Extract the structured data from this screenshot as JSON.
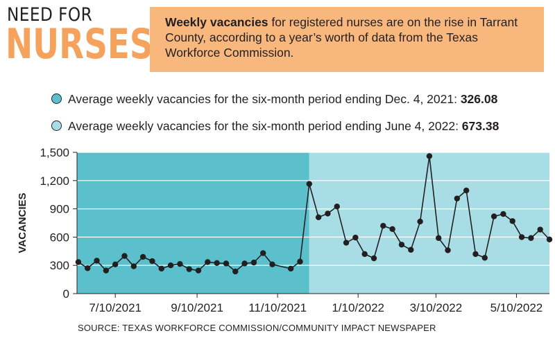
{
  "header": {
    "title_line1": "NEED FOR",
    "title_line2": "NURSES",
    "intro_bold": "Weekly vacancies",
    "intro_rest": " for registered nurses are on the rise in Tarrant County, according to a year’s worth of data from the Texas Workforce Commission."
  },
  "legend": [
    {
      "text": "Average weekly vacancies for the six-month period ending Dec. 4, 2021: ",
      "value": "326.08",
      "color": "#5bc0cc"
    },
    {
      "text": "Average weekly vacancies for the six-month period ending June 4, 2022: ",
      "value": "673.38",
      "color": "#a8dde6"
    }
  ],
  "source": "SOURCE: TEXAS WORKFORCE COMMISSION/COMMUNITY IMPACT NEWSPAPER",
  "colors": {
    "period1": "#5bc0cc",
    "period2": "#a8dde6",
    "line": "#231f20"
  },
  "chart_data": {
    "type": "line",
    "ylabel": "VACANCIES",
    "xlabel": "",
    "ylim": [
      0,
      1500
    ],
    "yticks": [
      0,
      300,
      600,
      900,
      1200,
      1500
    ],
    "ytick_labels": [
      "0",
      "300",
      "600",
      "900",
      "1,200",
      "1,500"
    ],
    "xlim": [
      "2021-06-11",
      "2022-06-04"
    ],
    "xticks": [
      "2021-07-10",
      "2021-09-10",
      "2021-11-10",
      "2022-01-10",
      "2022-03-10",
      "2022-05-10"
    ],
    "xtick_labels": [
      "7/10/2021",
      "9/10/2021",
      "11/10/2021",
      "1/10/2022",
      "3/10/2022",
      "5/10/2022"
    ],
    "shaded_periods": [
      {
        "start": "2021-06-11",
        "end": "2021-12-04",
        "color": "#5bc0cc"
      },
      {
        "start": "2021-12-04",
        "end": "2022-06-04",
        "color": "#a8dde6"
      }
    ],
    "grid": "horizontal",
    "series": [
      {
        "x": [
          "2021-06-12",
          "2021-06-19",
          "2021-06-26",
          "2021-07-03",
          "2021-07-10",
          "2021-07-17",
          "2021-07-24",
          "2021-07-31",
          "2021-08-07",
          "2021-08-14",
          "2021-08-21",
          "2021-08-28",
          "2021-09-04",
          "2021-09-11",
          "2021-09-18",
          "2021-09-25",
          "2021-10-02",
          "2021-10-09",
          "2021-10-16",
          "2021-10-23",
          "2021-10-30",
          "2021-11-06",
          "2021-11-20",
          "2021-11-27",
          "2021-12-04",
          "2021-12-11",
          "2021-12-18",
          "2021-12-25",
          "2022-01-01",
          "2022-01-08",
          "2022-01-15",
          "2022-01-22",
          "2022-01-29",
          "2022-02-05",
          "2022-02-12",
          "2022-02-19",
          "2022-02-26",
          "2022-03-05",
          "2022-03-12",
          "2022-03-19",
          "2022-03-26",
          "2022-04-02",
          "2022-04-09",
          "2022-04-16",
          "2022-04-23",
          "2022-04-30",
          "2022-05-07",
          "2022-05-14",
          "2022-05-21",
          "2022-05-28",
          "2022-06-04"
        ],
        "values": [
          335,
          270,
          350,
          245,
          310,
          400,
          290,
          390,
          345,
          265,
          300,
          315,
          260,
          245,
          335,
          325,
          320,
          235,
          320,
          330,
          430,
          310,
          265,
          340,
          1165,
          810,
          850,
          925,
          540,
          595,
          420,
          375,
          720,
          685,
          520,
          465,
          765,
          1460,
          590,
          460,
          1010,
          1095,
          420,
          380,
          820,
          845,
          770,
          600,
          590,
          680,
          575
        ]
      }
    ]
  }
}
